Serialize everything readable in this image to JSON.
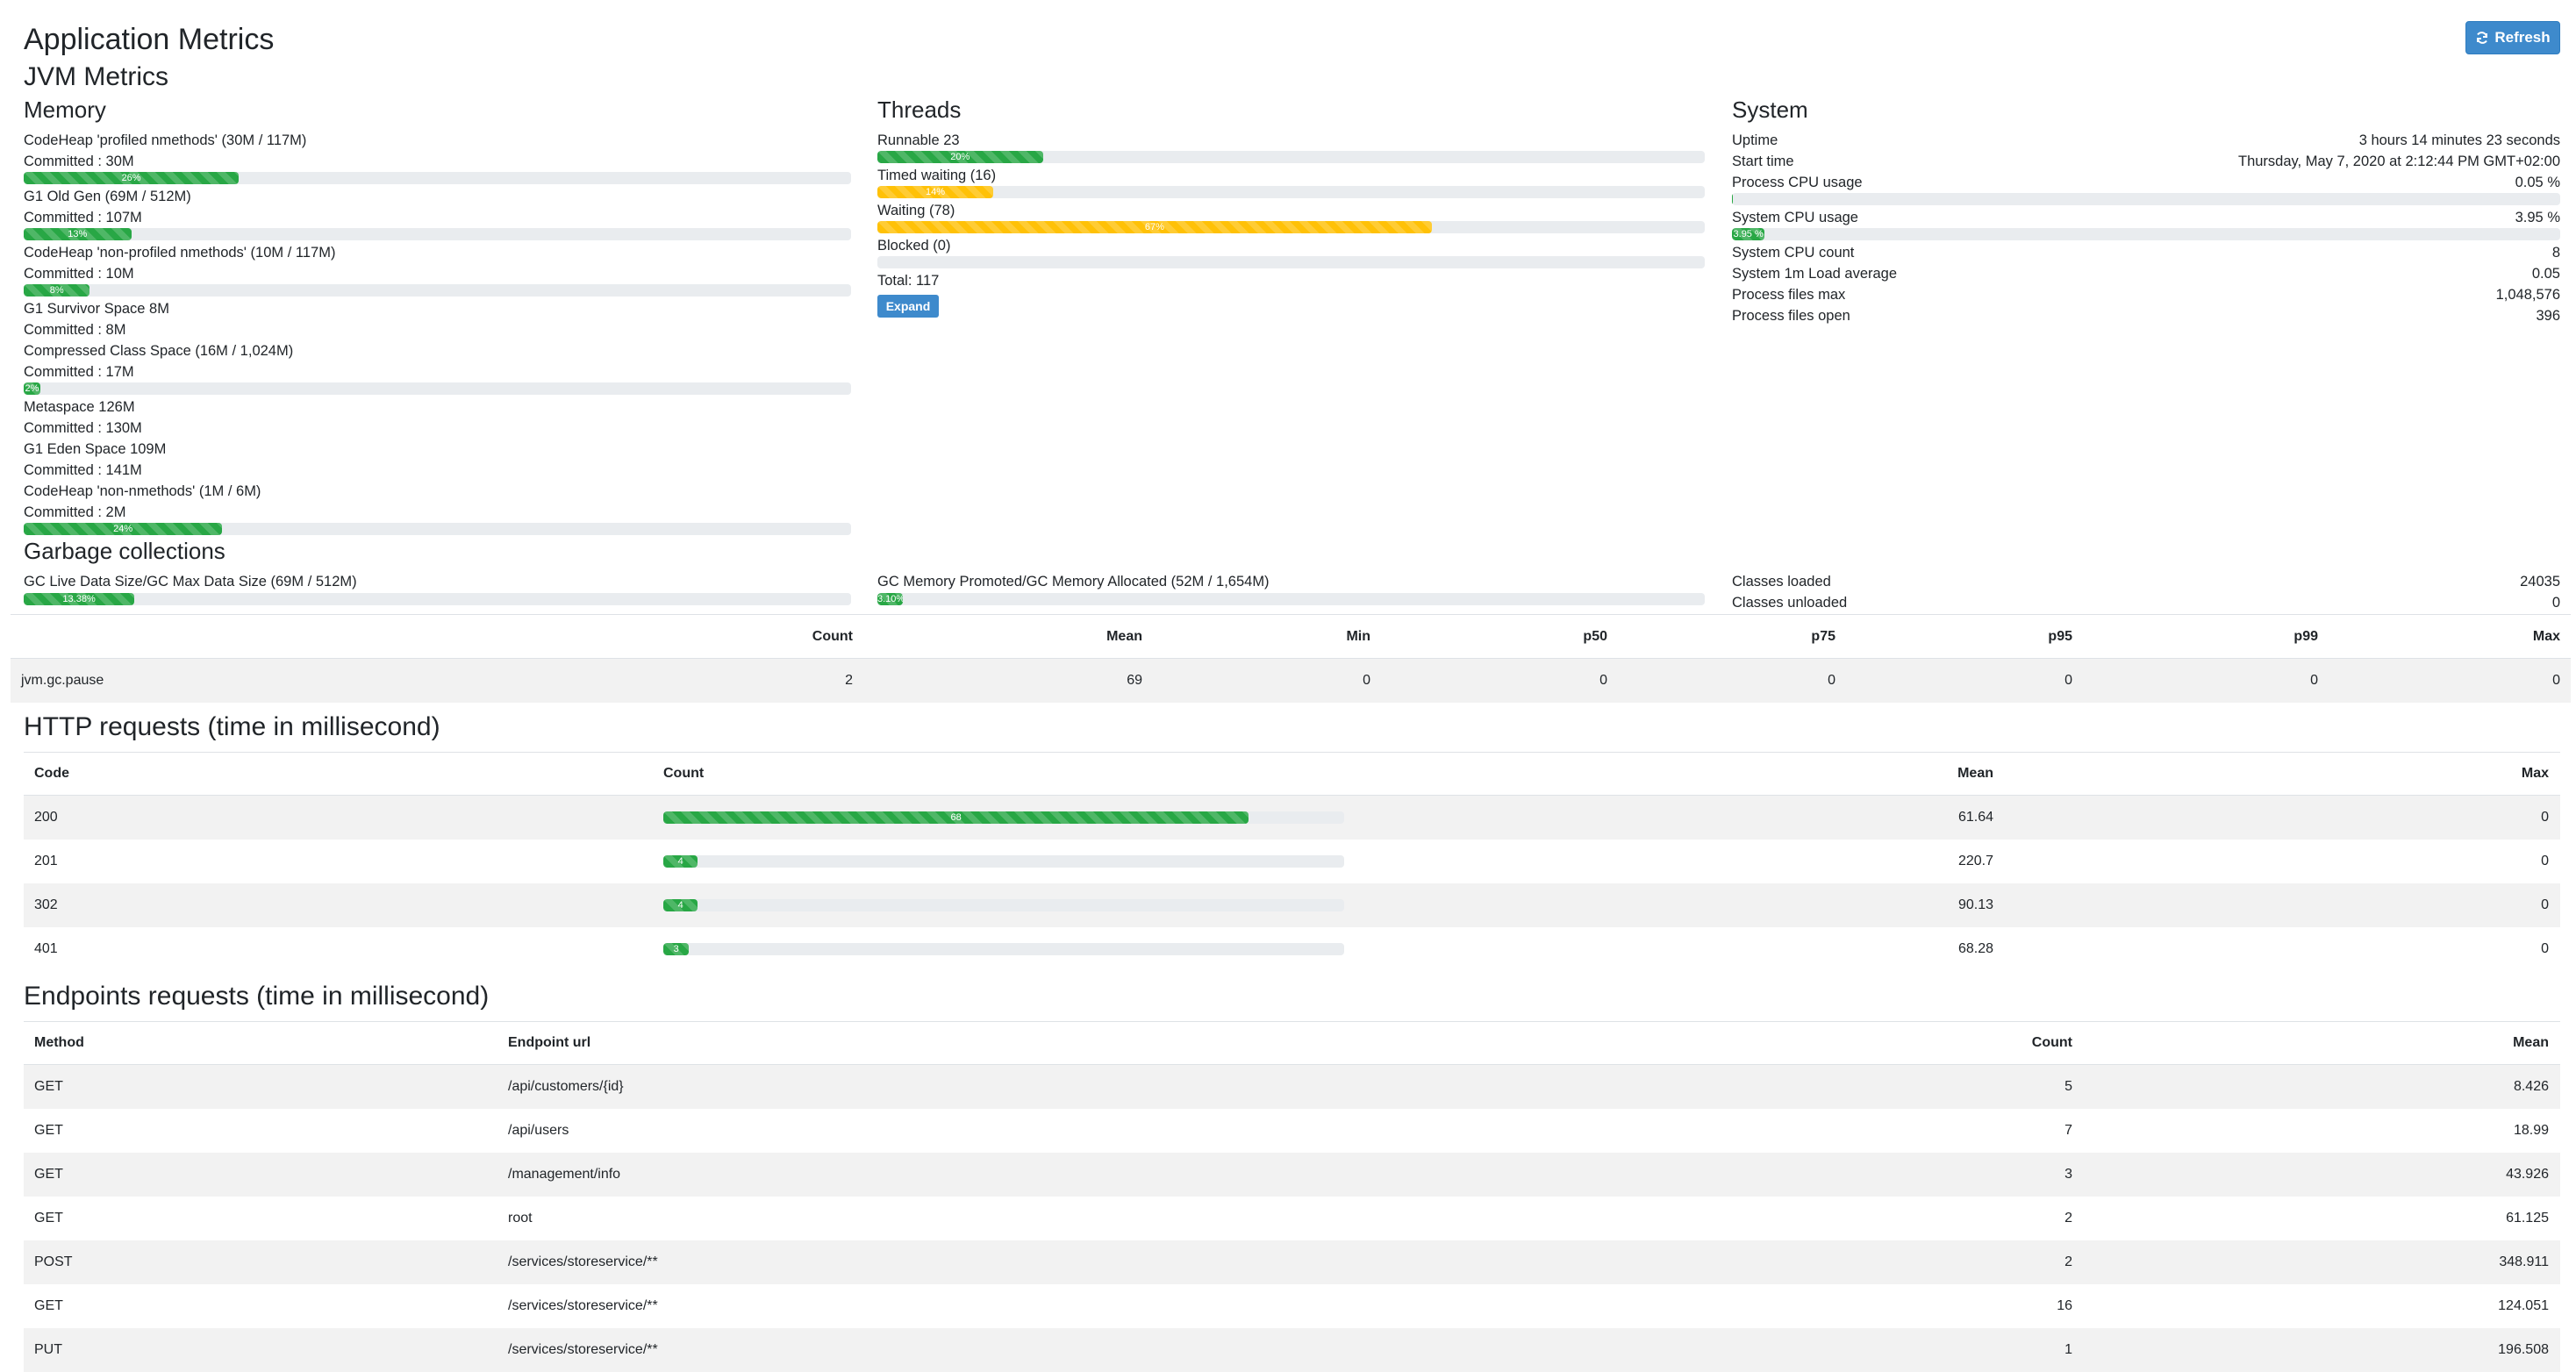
{
  "header": {
    "title": "Application Metrics",
    "refresh_label": "Refresh"
  },
  "jvm": {
    "title": "JVM Metrics",
    "memory": {
      "title": "Memory",
      "items": [
        {
          "name": "CodeHeap 'profiled nmethods' (30M / 117M)",
          "committed": "Committed : 30M",
          "percent": 26,
          "percent_label": "26%"
        },
        {
          "name": "G1 Old Gen (69M / 512M)",
          "committed": "Committed : 107M",
          "percent": 13,
          "percent_label": "13%"
        },
        {
          "name": "CodeHeap 'non-profiled nmethods' (10M / 117M)",
          "committed": "Committed : 10M",
          "percent": 8,
          "percent_label": "8%"
        },
        {
          "name": "G1 Survivor Space 8M",
          "committed": "Committed : 8M"
        },
        {
          "name": "Compressed Class Space (16M / 1,024M)",
          "committed": "Committed : 17M",
          "percent": 2,
          "percent_label": "2%"
        },
        {
          "name": "Metaspace 126M",
          "committed": "Committed : 130M"
        },
        {
          "name": "G1 Eden Space 109M",
          "committed": "Committed : 141M"
        },
        {
          "name": "CodeHeap 'non-nmethods' (1M / 6M)",
          "committed": "Committed : 2M",
          "percent": 24,
          "percent_label": "24%"
        }
      ]
    },
    "threads": {
      "title": "Threads",
      "items": [
        {
          "label": "Runnable 23",
          "percent": 20,
          "percent_label": "20%",
          "status": "success"
        },
        {
          "label": "Timed waiting (16)",
          "percent": 14,
          "percent_label": "14%",
          "status": "warning"
        },
        {
          "label": "Waiting (78)",
          "percent": 67,
          "percent_label": "67%",
          "status": "warning"
        },
        {
          "label": "Blocked (0)",
          "percent": 0,
          "percent_label": "",
          "status": "success"
        }
      ],
      "total": "Total: 117",
      "expand_label": "Expand"
    },
    "system": {
      "title": "System",
      "uptime_label": "Uptime",
      "uptime_value": "3 hours 14 minutes 23 seconds",
      "start_label": "Start time",
      "start_value": "Thursday, May 7, 2020 at 2:12:44 PM GMT+02:00",
      "process_cpu_label": "Process CPU usage",
      "process_cpu_value": "0.05 %",
      "process_cpu_percent": 0.05,
      "system_cpu_label": "System CPU usage",
      "system_cpu_value": "3.95 %",
      "system_cpu_percent": 3.95,
      "system_cpu_bar_label": "3.95 %",
      "cpu_count_label": "System CPU count",
      "cpu_count_value": "8",
      "load_label": "System 1m Load average",
      "load_value": "0.05",
      "files_max_label": "Process files max",
      "files_max_value": "1,048,576",
      "files_open_label": "Process files open",
      "files_open_value": "396"
    }
  },
  "gc": {
    "title": "Garbage collections",
    "live_label": "GC Live Data Size/GC Max Data Size (69M / 512M)",
    "live_percent": 13.38,
    "live_bar_label": "13.38%",
    "promoted_label": "GC Memory Promoted/GC Memory Allocated (52M / 1,654M)",
    "promoted_percent": 3.1,
    "promoted_bar_label": "3.10%",
    "classes_loaded_label": "Classes loaded",
    "classes_loaded_value": "24035",
    "classes_unloaded_label": "Classes unloaded",
    "classes_unloaded_value": "0",
    "table": {
      "headers": [
        "Count",
        "Mean",
        "Min",
        "p50",
        "p75",
        "p95",
        "p99",
        "Max"
      ],
      "row": {
        "name": "jvm.gc.pause",
        "values": [
          "2",
          "69",
          "0",
          "0",
          "0",
          "0",
          "0",
          "0"
        ]
      }
    }
  },
  "http": {
    "title": "HTTP requests (time in millisecond)",
    "headers": [
      "Code",
      "Count",
      "Mean",
      "Max"
    ],
    "rows": [
      {
        "code": "200",
        "count": "68",
        "count_value": 68,
        "mean": "61.64",
        "max": "0"
      },
      {
        "code": "201",
        "count": "4",
        "count_value": 4,
        "mean": "220.7",
        "max": "0"
      },
      {
        "code": "302",
        "count": "4",
        "count_value": 4,
        "mean": "90.13",
        "max": "0"
      },
      {
        "code": "401",
        "count": "3",
        "count_value": 3,
        "mean": "68.28",
        "max": "0"
      }
    ]
  },
  "endpoints": {
    "title": "Endpoints requests (time in millisecond)",
    "headers": [
      "Method",
      "Endpoint url",
      "Count",
      "Mean"
    ],
    "rows": [
      {
        "method": "GET",
        "url": "/api/customers/{id}",
        "count": "5",
        "mean": "8.426"
      },
      {
        "method": "GET",
        "url": "/api/users",
        "count": "7",
        "mean": "18.99"
      },
      {
        "method": "GET",
        "url": "/management/info",
        "count": "3",
        "mean": "43.926"
      },
      {
        "method": "GET",
        "url": "root",
        "count": "2",
        "mean": "61.125"
      },
      {
        "method": "POST",
        "url": "/services/storeservice/**",
        "count": "2",
        "mean": "348.911"
      },
      {
        "method": "GET",
        "url": "/services/storeservice/**",
        "count": "16",
        "mean": "124.051"
      },
      {
        "method": "PUT",
        "url": "/services/storeservice/**",
        "count": "1",
        "mean": "196.508"
      }
    ]
  }
}
